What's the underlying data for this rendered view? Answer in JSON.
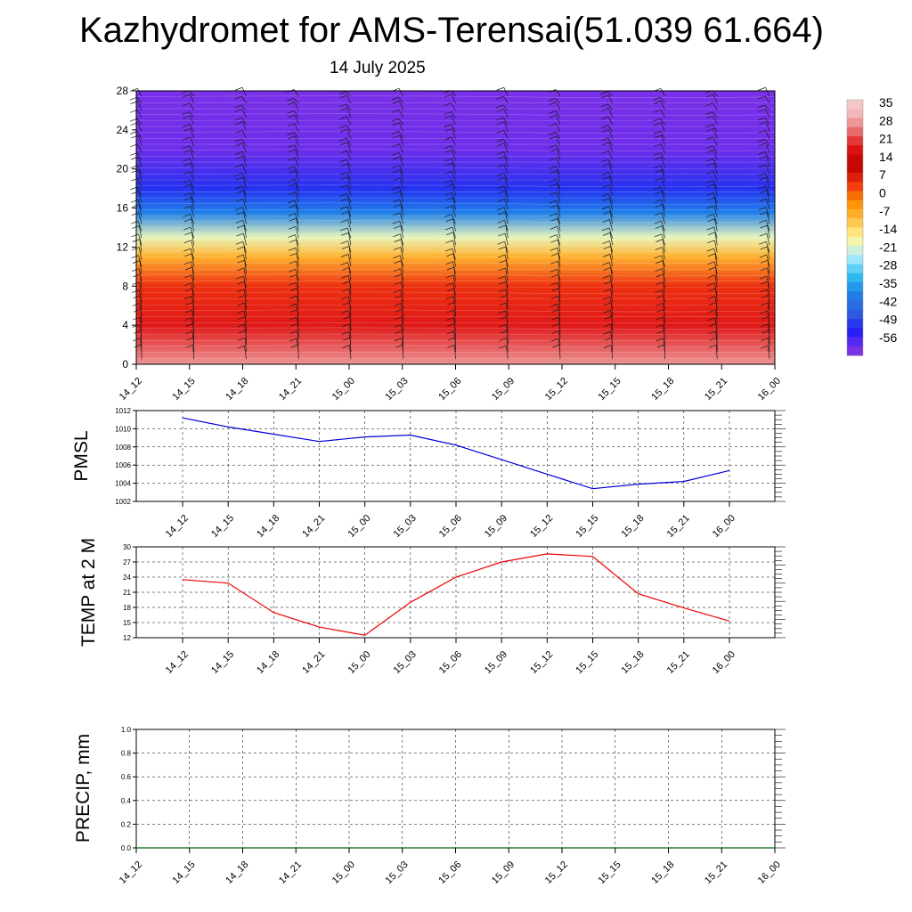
{
  "header": {
    "title": "Kazhydromet for AMS-Terensai(51.039 61.664)",
    "subtitle": "14 July 2025"
  },
  "colors": {
    "pmsl_line": "#0000dd",
    "temp_line": "#ee0000",
    "precip_line": "#006400",
    "grid": "#000000"
  },
  "chart_data": [
    {
      "type": "heatmap",
      "title": "",
      "x_tick_labels": [
        "14_12",
        "14_15",
        "14_18",
        "14_21",
        "15_00",
        "15_03",
        "15_06",
        "15_09",
        "15_12",
        "15_15",
        "15_18",
        "15_21",
        "16_00"
      ],
      "y_ticks": [
        0,
        4,
        8,
        12,
        16,
        20,
        24,
        28
      ],
      "ylim": [
        0,
        28
      ],
      "colorbar_labels": [
        "35",
        "28",
        "21",
        "14",
        "7",
        "0",
        "-7",
        "-14",
        "-21",
        "-28",
        "-35",
        "-42",
        "-49",
        "-56"
      ],
      "colorbar_colors": [
        "#f6c7c7",
        "#ea8080",
        "#e01818",
        "#bb0000",
        "#ee3010",
        "#ff8c00",
        "#ffc040",
        "#fff8a0",
        "#b0ecff",
        "#30bff0",
        "#2080e8",
        "#3060e0",
        "#2020f8",
        "#7a30e8"
      ],
      "wind_barbs": true,
      "profile": [
        {
          "level": 0,
          "value": 30
        },
        {
          "level": 4,
          "value": 21
        },
        {
          "level": 8,
          "value": 7
        },
        {
          "level": 11,
          "value": -5
        },
        {
          "level": 13,
          "value": -16
        },
        {
          "level": 15.5,
          "value": -35
        },
        {
          "level": 18,
          "value": -47
        },
        {
          "level": 22,
          "value": -55
        },
        {
          "level": 28,
          "value": -60
        }
      ]
    },
    {
      "type": "line",
      "ylabel": "PMSL",
      "categories": [
        "14_12",
        "14_15",
        "14_18",
        "14_21",
        "15_00",
        "15_03",
        "15_06",
        "15_09",
        "15_12",
        "15_15",
        "15_18",
        "15_21",
        "16_00"
      ],
      "series": [
        {
          "values": [
            1011.2,
            1010.2,
            1009.4,
            1008.6,
            1009.1,
            1009.3,
            1008.2,
            1006.6,
            1005.0,
            1003.4,
            1003.9,
            1004.2,
            1005.4
          ]
        }
      ],
      "ylim": [
        1002,
        1012
      ],
      "y_ticks": [
        "1002",
        "1004",
        "1006",
        "1008",
        "1010",
        "1012"
      ],
      "grid": true
    },
    {
      "type": "line",
      "ylabel": "TEMP at 2 M",
      "categories": [
        "14_12",
        "14_15",
        "14_18",
        "14_21",
        "15_00",
        "15_03",
        "15_06",
        "15_09",
        "15_12",
        "15_15",
        "15_18",
        "15_21",
        "16_00"
      ],
      "series": [
        {
          "values": [
            23.5,
            22.8,
            17.0,
            14.1,
            12.5,
            19.0,
            24.0,
            27.0,
            28.6,
            28.1,
            20.7,
            17.9,
            15.3
          ]
        }
      ],
      "ylim": [
        12,
        30
      ],
      "y_ticks": [
        "12",
        "15",
        "18",
        "21",
        "24",
        "27",
        "30"
      ],
      "grid": true
    },
    {
      "type": "line",
      "ylabel": "PRECIP, mm",
      "categories": [
        "14_12",
        "14_15",
        "14_18",
        "14_21",
        "15_00",
        "15_03",
        "15_06",
        "15_09",
        "15_12",
        "15_15",
        "15_18",
        "15_21",
        "16_00"
      ],
      "series": [
        {
          "values": [
            0,
            0,
            0,
            0,
            0,
            0,
            0,
            0,
            0,
            0,
            0,
            0,
            0
          ]
        }
      ],
      "ylim": [
        0,
        1
      ],
      "y_ticks": [
        "0.0",
        "0.2",
        "0.4",
        "0.6",
        "0.8",
        "1.0"
      ],
      "grid": true
    }
  ]
}
